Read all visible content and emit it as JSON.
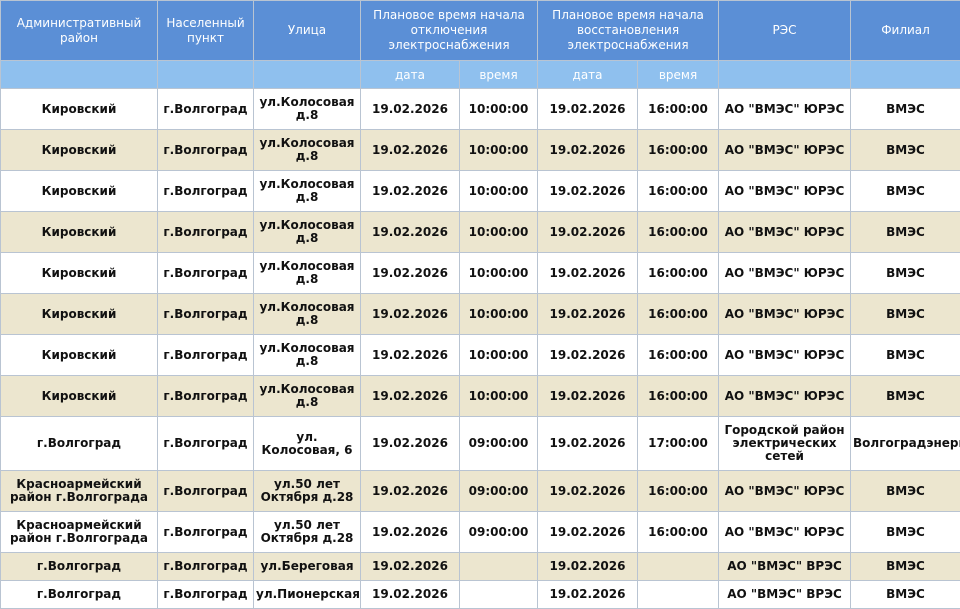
{
  "header": {
    "district": "Административный район",
    "settlement": "Населенный пункт",
    "street": "Улица",
    "off_time": "Плановое время начала отключения электроснабжения",
    "restore_time": "Плановое время начала восстановления электроснабжения",
    "res": "РЭС",
    "branch": "Филиал",
    "date_label": "дата",
    "time_label": "время"
  },
  "rows": [
    {
      "district": "Кировский",
      "settlement": "г.Волгоград",
      "street": "ул.Колосовая д.8",
      "off_date": "19.02.2026",
      "off_time": "10:00:00",
      "on_date": "19.02.2026",
      "on_time": "16:00:00",
      "res": "АО \"ВМЭС\" ЮРЭС",
      "branch": "ВМЭС"
    },
    {
      "district": "Кировский",
      "settlement": "г.Волгоград",
      "street": "ул.Колосовая д.8",
      "off_date": "19.02.2026",
      "off_time": "10:00:00",
      "on_date": "19.02.2026",
      "on_time": "16:00:00",
      "res": "АО \"ВМЭС\" ЮРЭС",
      "branch": "ВМЭС"
    },
    {
      "district": "Кировский",
      "settlement": "г.Волгоград",
      "street": "ул.Колосовая д.8",
      "off_date": "19.02.2026",
      "off_time": "10:00:00",
      "on_date": "19.02.2026",
      "on_time": "16:00:00",
      "res": "АО \"ВМЭС\" ЮРЭС",
      "branch": "ВМЭС"
    },
    {
      "district": "Кировский",
      "settlement": "г.Волгоград",
      "street": "ул.Колосовая д.8",
      "off_date": "19.02.2026",
      "off_time": "10:00:00",
      "on_date": "19.02.2026",
      "on_time": "16:00:00",
      "res": "АО \"ВМЭС\" ЮРЭС",
      "branch": "ВМЭС"
    },
    {
      "district": "Кировский",
      "settlement": "г.Волгоград",
      "street": "ул.Колосовая д.8",
      "off_date": "19.02.2026",
      "off_time": "10:00:00",
      "on_date": "19.02.2026",
      "on_time": "16:00:00",
      "res": "АО \"ВМЭС\" ЮРЭС",
      "branch": "ВМЭС"
    },
    {
      "district": "Кировский",
      "settlement": "г.Волгоград",
      "street": "ул.Колосовая д.8",
      "off_date": "19.02.2026",
      "off_time": "10:00:00",
      "on_date": "19.02.2026",
      "on_time": "16:00:00",
      "res": "АО \"ВМЭС\" ЮРЭС",
      "branch": "ВМЭС"
    },
    {
      "district": "Кировский",
      "settlement": "г.Волгоград",
      "street": "ул.Колосовая д.8",
      "off_date": "19.02.2026",
      "off_time": "10:00:00",
      "on_date": "19.02.2026",
      "on_time": "16:00:00",
      "res": "АО \"ВМЭС\" ЮРЭС",
      "branch": "ВМЭС"
    },
    {
      "district": "Кировский",
      "settlement": "г.Волгоград",
      "street": "ул.Колосовая д.8",
      "off_date": "19.02.2026",
      "off_time": "10:00:00",
      "on_date": "19.02.2026",
      "on_time": "16:00:00",
      "res": "АО \"ВМЭС\" ЮРЭС",
      "branch": "ВМЭС"
    },
    {
      "district": "г.Волгоград",
      "settlement": "г.Волгоград",
      "street": "ул. Колосовая, 6",
      "off_date": "19.02.2026",
      "off_time": "09:00:00",
      "on_date": "19.02.2026",
      "on_time": "17:00:00",
      "res": "Городской район электрических сетей",
      "branch": "Волгоградэнерго"
    },
    {
      "district": "Красноармейский район г.Волгограда",
      "settlement": "г.Волгоград",
      "street": "ул.50 лет Октября д.28",
      "off_date": "19.02.2026",
      "off_time": "09:00:00",
      "on_date": "19.02.2026",
      "on_time": "16:00:00",
      "res": "АО \"ВМЭС\" ЮРЭС",
      "branch": "ВМЭС"
    },
    {
      "district": "Красноармейский район г.Волгограда",
      "settlement": "г.Волгоград",
      "street": "ул.50 лет Октября д.28",
      "off_date": "19.02.2026",
      "off_time": "09:00:00",
      "on_date": "19.02.2026",
      "on_time": "16:00:00",
      "res": "АО \"ВМЭС\" ЮРЭС",
      "branch": "ВМЭС"
    },
    {
      "district": "г.Волгоград",
      "settlement": "г.Волгоград",
      "street": "ул.Береговая",
      "off_date": "19.02.2026",
      "off_time": "",
      "on_date": "19.02.2026",
      "on_time": "",
      "res": "АО \"ВМЭС\" ВРЭС",
      "branch": "ВМЭС"
    },
    {
      "district": "г.Волгоград",
      "settlement": "г.Волгоград",
      "street": "ул.Пионерская",
      "off_date": "19.02.2026",
      "off_time": "",
      "on_date": "19.02.2026",
      "on_time": "",
      "res": "АО \"ВМЭС\" ВРЭС",
      "branch": "ВМЭС"
    }
  ]
}
